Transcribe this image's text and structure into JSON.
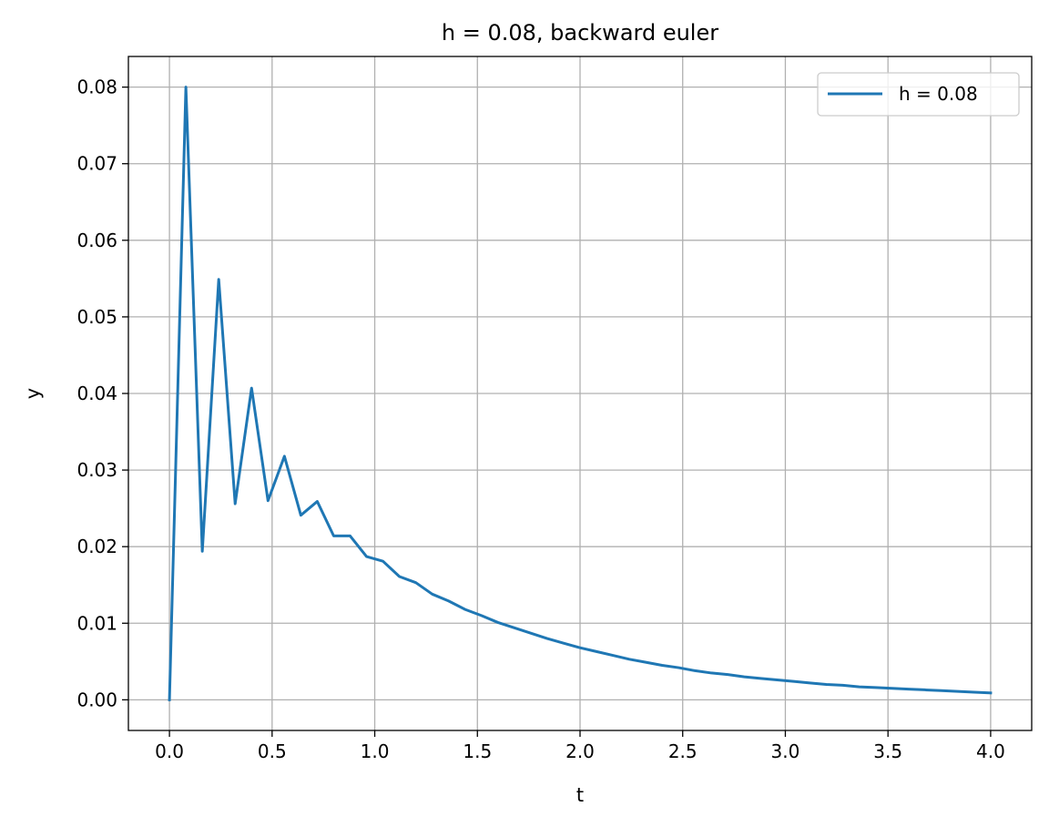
{
  "chart_data": {
    "type": "line",
    "title": "h = 0.08, backward euler",
    "xlabel": "t",
    "ylabel": "y",
    "xlim": [
      -0.2,
      4.2
    ],
    "ylim": [
      -0.004,
      0.084
    ],
    "xticks": [
      0.0,
      0.5,
      1.0,
      1.5,
      2.0,
      2.5,
      3.0,
      3.5,
      4.0
    ],
    "xtick_labels": [
      "0.0",
      "0.5",
      "1.0",
      "1.5",
      "2.0",
      "2.5",
      "3.0",
      "3.5",
      "4.0"
    ],
    "yticks": [
      0.0,
      0.01,
      0.02,
      0.03,
      0.04,
      0.05,
      0.06,
      0.07,
      0.08
    ],
    "ytick_labels": [
      "0.00",
      "0.01",
      "0.02",
      "0.03",
      "0.04",
      "0.05",
      "0.06",
      "0.07",
      "0.08"
    ],
    "grid": true,
    "legend": "top-right",
    "series": [
      {
        "name": "h = 0.08",
        "color": "#1f77b4",
        "x": [
          0.0,
          0.08,
          0.16,
          0.24,
          0.32,
          0.4,
          0.48,
          0.56,
          0.64,
          0.72,
          0.8,
          0.88,
          0.96,
          1.04,
          1.12,
          1.2,
          1.28,
          1.36,
          1.44,
          1.52,
          1.6,
          1.68,
          1.76,
          1.84,
          1.92,
          2.0,
          2.08,
          2.16,
          2.24,
          2.32,
          2.4,
          2.48,
          2.56,
          2.64,
          2.72,
          2.8,
          2.88,
          2.96,
          3.04,
          3.12,
          3.2,
          3.28,
          3.36,
          3.44,
          3.52,
          3.6,
          3.68,
          3.76,
          3.84,
          3.92,
          4.0
        ],
        "y": [
          0.0,
          0.08,
          0.0194,
          0.0549,
          0.0256,
          0.0407,
          0.026,
          0.0318,
          0.0241,
          0.0259,
          0.0214,
          0.0214,
          0.0187,
          0.0181,
          0.0161,
          0.0153,
          0.0138,
          0.0129,
          0.0118,
          0.011,
          0.0101,
          0.0094,
          0.0087,
          0.008,
          0.0074,
          0.0068,
          0.0063,
          0.0058,
          0.0053,
          0.0049,
          0.0045,
          0.0042,
          0.0038,
          0.0035,
          0.0033,
          0.003,
          0.0028,
          0.0026,
          0.0024,
          0.0022,
          0.002,
          0.0019,
          0.0017,
          0.0016,
          0.0015,
          0.0014,
          0.0013,
          0.0012,
          0.0011,
          0.001,
          0.0009
        ]
      }
    ]
  }
}
